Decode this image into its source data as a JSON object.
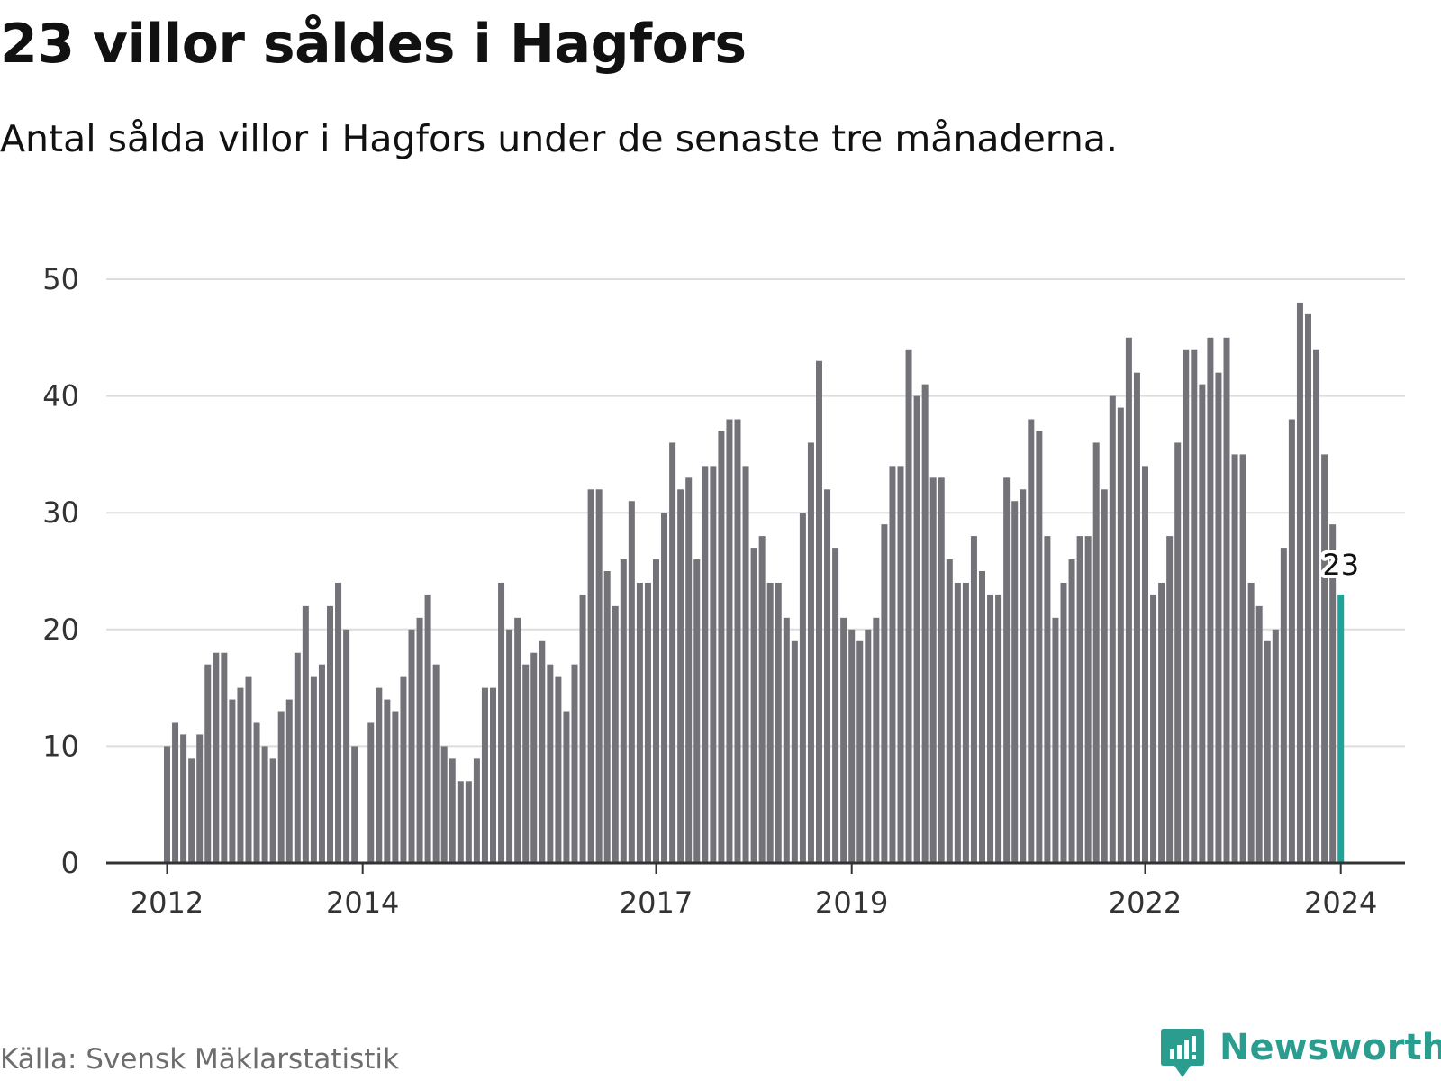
{
  "title": "23 villor såldes i Hagfors",
  "subtitle": "Antal sålda villor i Hagfors under de senaste tre månaderna.",
  "source": "Källa: Svensk Mäklarstatistik",
  "brand": {
    "name": "Newsworthy",
    "icon": "newsworthy-logo-icon"
  },
  "colors": {
    "bar": "#737278",
    "highlight": "#1fa398",
    "grid": "#dddddd",
    "axis": "#333333",
    "brand": "#2a9d8f"
  },
  "chart_data": {
    "type": "bar",
    "title": "23 villor såldes i Hagfors",
    "xlabel": "",
    "ylabel": "",
    "ylim": [
      0,
      50
    ],
    "yticks": [
      0,
      10,
      20,
      30,
      40,
      50
    ],
    "x_tick_labels": [
      {
        "label": "2012",
        "index": 0
      },
      {
        "label": "2014",
        "index": 24
      },
      {
        "label": "2017",
        "index": 60
      },
      {
        "label": "2019",
        "index": 84
      },
      {
        "label": "2022",
        "index": 120
      },
      {
        "label": "2024",
        "index": 144
      }
    ],
    "values": [
      10,
      12,
      11,
      9,
      11,
      17,
      18,
      18,
      14,
      15,
      16,
      12,
      10,
      9,
      13,
      14,
      18,
      22,
      16,
      17,
      22,
      24,
      20,
      10,
      null,
      12,
      15,
      14,
      13,
      16,
      20,
      21,
      23,
      17,
      10,
      9,
      7,
      7,
      9,
      15,
      15,
      24,
      20,
      21,
      17,
      18,
      19,
      17,
      16,
      13,
      17,
      23,
      32,
      32,
      25,
      22,
      26,
      31,
      24,
      24,
      26,
      30,
      36,
      32,
      33,
      26,
      34,
      34,
      37,
      38,
      38,
      34,
      27,
      28,
      24,
      24,
      21,
      19,
      30,
      36,
      43,
      32,
      27,
      21,
      20,
      19,
      20,
      21,
      29,
      34,
      34,
      44,
      40,
      41,
      33,
      33,
      26,
      24,
      24,
      28,
      25,
      23,
      23,
      33,
      31,
      32,
      38,
      37,
      28,
      21,
      24,
      26,
      28,
      28,
      36,
      32,
      40,
      39,
      45,
      42,
      34,
      23,
      24,
      28,
      36,
      44,
      44,
      41,
      45,
      42,
      45,
      35,
      35,
      24,
      22,
      19,
      20,
      27,
      38,
      48,
      47,
      44,
      35,
      29,
      23
    ],
    "highlight": {
      "index": 144,
      "value": 23,
      "label": "23"
    }
  }
}
